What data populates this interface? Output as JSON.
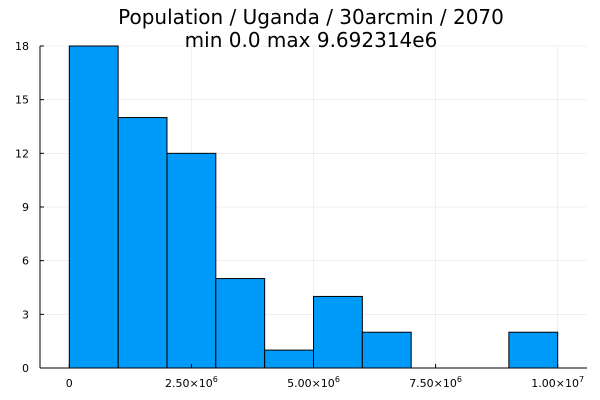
{
  "chart_data": {
    "type": "bar",
    "title_line1": "Population / Uganda / 30arcmin / 2070",
    "title_line2": "min 0.0  max 9.692314e6",
    "bin_width": 1000000,
    "bins": [
      {
        "start": 0,
        "end": 1000000,
        "count": 18
      },
      {
        "start": 1000000,
        "end": 2000000,
        "count": 14
      },
      {
        "start": 2000000,
        "end": 3000000,
        "count": 12
      },
      {
        "start": 3000000,
        "end": 4000000,
        "count": 5
      },
      {
        "start": 4000000,
        "end": 5000000,
        "count": 1
      },
      {
        "start": 5000000,
        "end": 6000000,
        "count": 4
      },
      {
        "start": 6000000,
        "end": 7000000,
        "count": 2
      },
      {
        "start": 7000000,
        "end": 8000000,
        "count": 0
      },
      {
        "start": 8000000,
        "end": 9000000,
        "count": 0
      },
      {
        "start": 9000000,
        "end": 10000000,
        "count": 2
      }
    ],
    "xlim": [
      -600000,
      10600000
    ],
    "ylim": [
      0,
      18
    ],
    "x_ticks": [
      {
        "value": 0,
        "mantissa": "0",
        "exp": ""
      },
      {
        "value": 2500000,
        "mantissa": "2.50×10",
        "exp": "6"
      },
      {
        "value": 5000000,
        "mantissa": "5.00×10",
        "exp": "6"
      },
      {
        "value": 7500000,
        "mantissa": "7.50×10",
        "exp": "6"
      },
      {
        "value": 10000000,
        "mantissa": "1.00×10",
        "exp": "7"
      }
    ],
    "y_ticks": [
      0,
      3,
      6,
      9,
      12,
      15,
      18
    ],
    "grid": true,
    "legend": "none",
    "bar_color": "#009af9"
  }
}
